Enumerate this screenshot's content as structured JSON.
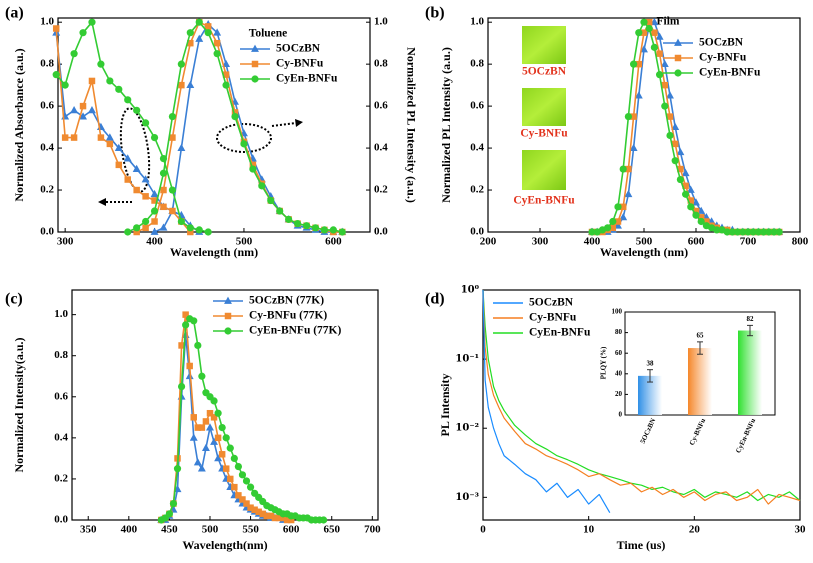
{
  "chart_data": [
    {
      "type": "line",
      "panel_label": "(a)",
      "annotation": "Toluene",
      "xlabel": "Wavelength (nm)",
      "ylabel": "Normalized Absorbance (a.u.)",
      "y2label": "Normalized PL Intensity (a.u.)",
      "xlim": [
        292,
        641
      ],
      "xticks": [
        300,
        400,
        500,
        600
      ],
      "ylim": [
        0,
        1.02
      ],
      "yticks": [
        {
          "value": 0,
          "label": "0.0"
        },
        0.2,
        0.4,
        0.6,
        0.8,
        {
          "value": 1,
          "label": "1.0"
        }
      ],
      "y2lim": [
        0,
        1.02
      ],
      "y2ticks": [
        {
          "value": 0,
          "label": "0.0"
        },
        0.2,
        0.4,
        0.6,
        0.8,
        {
          "value": 1,
          "label": "1.0"
        }
      ],
      "x": [
        290,
        300,
        310,
        320,
        330,
        340,
        350,
        360,
        370,
        380,
        390,
        400,
        410,
        420,
        430,
        440,
        450,
        460,
        470,
        480,
        490,
        500,
        510,
        520,
        530,
        540,
        550,
        560,
        570,
        580,
        590,
        600,
        610
      ],
      "series": [
        {
          "name": "5OCzBN",
          "color": "#3a7fd5",
          "marker": "triangle",
          "values": [
            0.95,
            0.55,
            0.58,
            0.55,
            0.58,
            0.5,
            0.45,
            0.4,
            0.35,
            0.3,
            0.25,
            0.18,
            0.12,
            0.1,
            0.08,
            0.03,
            0.0,
            null,
            null,
            null,
            null,
            null,
            null,
            null,
            null,
            null,
            null,
            null,
            null,
            null,
            null,
            null,
            null
          ],
          "y2_values": [
            null,
            null,
            null,
            null,
            null,
            null,
            null,
            null,
            null,
            null,
            null,
            0.0,
            0.02,
            0.1,
            0.4,
            0.7,
            0.92,
            0.99,
            0.95,
            0.8,
            0.62,
            0.47,
            0.35,
            0.25,
            0.17,
            0.1,
            0.06,
            0.03,
            0.02,
            0.01,
            0.0,
            0.0,
            0.0
          ]
        },
        {
          "name": "Cy-BNFu",
          "color": "#f08a30",
          "marker": "square",
          "values": [
            0.97,
            0.45,
            0.45,
            0.6,
            0.72,
            0.45,
            0.42,
            0.32,
            0.25,
            0.2,
            0.17,
            0.15,
            0.12,
            0.1,
            0.05,
            0.0,
            null,
            null,
            null,
            null,
            null,
            null,
            null,
            null,
            null,
            null,
            null,
            null,
            null,
            null,
            null,
            null,
            null
          ],
          "y2_values": [
            null,
            null,
            null,
            null,
            null,
            null,
            null,
            null,
            null,
            0.0,
            0.02,
            0.05,
            0.2,
            0.45,
            0.7,
            0.9,
            1.0,
            0.98,
            0.9,
            0.75,
            0.57,
            0.43,
            0.32,
            0.23,
            0.15,
            0.1,
            0.06,
            0.04,
            0.03,
            0.02,
            0.01,
            0.0,
            0.0
          ]
        },
        {
          "name": "CyEn-BNFu",
          "color": "#33cc33",
          "marker": "circle",
          "values": [
            0.75,
            0.7,
            0.85,
            0.95,
            1.0,
            0.8,
            0.72,
            0.68,
            0.63,
            0.58,
            0.52,
            0.45,
            0.35,
            0.2,
            0.05,
            0.02,
            0.01,
            0.0,
            null,
            null,
            null,
            null,
            null,
            null,
            null,
            null,
            null,
            null,
            null,
            null,
            null,
            null,
            null
          ],
          "y2_values": [
            null,
            null,
            null,
            null,
            null,
            null,
            null,
            null,
            0.0,
            0.02,
            0.05,
            0.1,
            0.28,
            0.55,
            0.8,
            0.95,
            1.0,
            0.95,
            0.85,
            0.7,
            0.55,
            0.42,
            0.3,
            0.22,
            0.15,
            0.1,
            0.06,
            0.04,
            0.03,
            0.02,
            0.01,
            0.01,
            0.0
          ]
        }
      ]
    },
    {
      "type": "line",
      "panel_label": "(b)",
      "annotation": "Film",
      "image_labels": [
        "5OCzBN",
        "Cy-BNFu",
        "CyEn-BNFu"
      ],
      "xlabel": "Wavelength (nm)",
      "ylabel": "Normalized PL Intensity (a.u.)",
      "xlim": [
        200,
        800
      ],
      "xticks": [
        200,
        300,
        400,
        500,
        600,
        700,
        800
      ],
      "ylim": [
        0,
        1.02
      ],
      "yticks": [
        {
          "value": 0,
          "label": "0.0"
        },
        0.2,
        0.4,
        0.6,
        0.8,
        {
          "value": 1,
          "label": "1.0"
        }
      ],
      "x": [
        400,
        410,
        420,
        430,
        440,
        450,
        460,
        470,
        480,
        490,
        500,
        510,
        520,
        530,
        540,
        550,
        560,
        570,
        580,
        590,
        600,
        610,
        620,
        630,
        640,
        650,
        660,
        670,
        680,
        690,
        700,
        710,
        720,
        730,
        740,
        750,
        760
      ],
      "series": [
        {
          "name": "5OCzBN",
          "color": "#3a7fd5",
          "marker": "triangle",
          "values": [
            0,
            0,
            0,
            0,
            0.01,
            0.03,
            0.07,
            0.18,
            0.4,
            0.65,
            0.87,
            0.98,
            1.0,
            0.93,
            0.8,
            0.65,
            0.5,
            0.38,
            0.28,
            0.2,
            0.14,
            0.1,
            0.07,
            0.05,
            0.03,
            0.02,
            0.01,
            0.01,
            0,
            0,
            0,
            0,
            0,
            0,
            0,
            0,
            0
          ]
        },
        {
          "name": "Cy-BNFu",
          "color": "#f08a30",
          "marker": "square",
          "values": [
            0,
            0,
            0,
            0.01,
            0.02,
            0.05,
            0.12,
            0.3,
            0.55,
            0.8,
            0.95,
            1.0,
            0.95,
            0.85,
            0.7,
            0.55,
            0.42,
            0.3,
            0.22,
            0.15,
            0.1,
            0.07,
            0.05,
            0.03,
            0.02,
            0.01,
            0.01,
            0,
            0,
            0,
            0,
            0,
            0,
            0,
            0,
            0,
            0
          ]
        },
        {
          "name": "CyEn-BNFu",
          "color": "#33cc33",
          "marker": "circle",
          "values": [
            0,
            0,
            0.01,
            0.02,
            0.05,
            0.12,
            0.3,
            0.55,
            0.8,
            0.95,
            1.0,
            0.97,
            0.88,
            0.75,
            0.6,
            0.46,
            0.34,
            0.25,
            0.18,
            0.12,
            0.08,
            0.05,
            0.03,
            0.02,
            0.01,
            0.01,
            0,
            0,
            0,
            0,
            0,
            0,
            0,
            0,
            0,
            0,
            0
          ]
        }
      ]
    },
    {
      "type": "line",
      "panel_label": "(c)",
      "xlabel": "Wavelength(nm)",
      "ylabel": "Normalized Intensity(a.u.)",
      "xlim": [
        330,
        707
      ],
      "xticks": [
        350,
        400,
        450,
        500,
        550,
        600,
        650,
        700
      ],
      "ylim": [
        0,
        1.12
      ],
      "yticks": [
        {
          "value": 0,
          "label": "0.0"
        },
        0.2,
        0.4,
        0.6,
        0.8,
        {
          "value": 1,
          "label": "1.0"
        }
      ],
      "x": [
        440,
        445,
        450,
        455,
        460,
        465,
        470,
        475,
        480,
        485,
        490,
        495,
        500,
        505,
        510,
        515,
        520,
        525,
        530,
        535,
        540,
        545,
        550,
        555,
        560,
        565,
        570,
        575,
        580,
        585,
        590,
        595,
        600,
        605,
        610,
        615,
        620,
        625,
        630,
        635,
        640
      ],
      "series": [
        {
          "name": "5OCzBN (77K)",
          "color": "#3a7fd5",
          "marker": "triangle",
          "values": [
            0,
            0,
            0.02,
            0.05,
            0.15,
            0.6,
            0.9,
            0.7,
            0.4,
            0.28,
            0.25,
            0.35,
            0.45,
            0.38,
            0.3,
            0.25,
            0.2,
            0.16,
            0.12,
            0.1,
            0.08,
            0.06,
            0.05,
            0.04,
            0.03,
            0.02,
            0.02,
            0.01,
            0.01,
            0.01,
            0,
            null,
            null,
            null,
            null,
            null,
            null,
            null,
            null,
            null,
            null
          ]
        },
        {
          "name": "Cy-BNFu (77K)",
          "color": "#f08a30",
          "marker": "square",
          "values": [
            0,
            0.01,
            0.03,
            0.08,
            0.3,
            0.85,
            1.0,
            0.75,
            0.5,
            0.45,
            0.45,
            0.48,
            0.52,
            0.5,
            0.4,
            0.32,
            0.25,
            0.2,
            0.16,
            0.12,
            0.1,
            0.08,
            0.06,
            0.05,
            0.04,
            0.03,
            0.02,
            0.02,
            0.01,
            0.01,
            0.01,
            0,
            0,
            null,
            null,
            null,
            null,
            null,
            null,
            null,
            null
          ]
        },
        {
          "name": "CyEn-BNFu (77K)",
          "color": "#33cc33",
          "marker": "circle",
          "values": [
            0,
            0.01,
            0.03,
            0.08,
            0.25,
            0.65,
            0.95,
            0.98,
            0.97,
            0.85,
            0.7,
            0.62,
            0.6,
            0.58,
            0.52,
            0.45,
            0.4,
            0.35,
            0.3,
            0.26,
            0.22,
            0.19,
            0.16,
            0.13,
            0.11,
            0.09,
            0.07,
            0.06,
            0.05,
            0.04,
            0.03,
            0.03,
            0.02,
            0.02,
            0.01,
            0.01,
            0.01,
            0,
            0,
            0,
            0
          ]
        }
      ]
    },
    {
      "type": "line",
      "panel_label": "(d)",
      "log_y": true,
      "xlabel": "Time (us)",
      "ylabel": "PL Intensity",
      "xlim": [
        0,
        30
      ],
      "xticks": [
        0,
        10,
        20,
        30
      ],
      "ylim": [
        0.00047,
        1
      ],
      "yticks": [
        {
          "value": 0.001,
          "label": "10⁻³"
        },
        {
          "value": 0.01,
          "label": "10⁻²"
        },
        {
          "value": 0.1,
          "label": "10⁻¹"
        },
        {
          "value": 1,
          "label": "10⁰"
        }
      ],
      "x": [
        0,
        0.2,
        0.5,
        1,
        1.5,
        2,
        3,
        4,
        5,
        6,
        7,
        8,
        9,
        10,
        11,
        12,
        13,
        14,
        15,
        16,
        17,
        18,
        19,
        20,
        21,
        22,
        23,
        24,
        25,
        26,
        27,
        28,
        29,
        30
      ],
      "series": [
        {
          "name": "5OCzBN",
          "color": "#1a8cff",
          "marker": "none",
          "values": [
            1.0,
            0.05,
            0.02,
            0.01,
            0.006,
            0.004,
            0.003,
            0.0022,
            0.0018,
            0.0012,
            0.0016,
            0.001,
            0.0013,
            0.0008,
            0.0011,
            0.0006,
            null,
            null,
            null,
            null,
            null,
            null,
            null,
            null,
            null,
            null,
            null,
            null,
            null,
            null,
            null,
            null,
            null,
            null
          ]
        },
        {
          "name": "Cy-BNFu",
          "color": "#f57f20",
          "marker": "none",
          "values": [
            1.0,
            0.15,
            0.06,
            0.03,
            0.02,
            0.014,
            0.009,
            0.006,
            0.005,
            0.004,
            0.0035,
            0.003,
            0.0025,
            0.002,
            0.0022,
            0.0018,
            0.0015,
            0.0016,
            0.0012,
            0.0014,
            0.0011,
            0.0013,
            0.001,
            0.0012,
            0.0009,
            0.0011,
            0.0012,
            0.0009,
            0.001,
            0.0013,
            0.0008,
            0.0011,
            0.001,
            0.0009
          ]
        },
        {
          "name": "CyEn-BNFu",
          "color": "#22dd22",
          "marker": "none",
          "values": [
            1.0,
            0.3,
            0.1,
            0.04,
            0.025,
            0.018,
            0.011,
            0.008,
            0.006,
            0.005,
            0.004,
            0.0035,
            0.003,
            0.0025,
            0.0022,
            0.002,
            0.0018,
            0.0016,
            0.0015,
            0.0013,
            0.0014,
            0.0012,
            0.0011,
            0.0013,
            0.001,
            0.0012,
            0.0011,
            0.001,
            0.0012,
            0.0009,
            0.0011,
            0.001,
            0.0012,
            0.0009
          ]
        }
      ]
    },
    {
      "type": "bar",
      "ylabel": "PLQY (%)",
      "categories": [
        "5OCzBN",
        "Cy-BNFu",
        "CyEn-BNFu"
      ],
      "values": [
        38,
        65,
        82
      ],
      "errors": [
        6,
        6,
        5
      ],
      "colors": [
        "#2f8fe6",
        "#f5872a",
        "#2ee02e"
      ],
      "ylim": [
        0,
        100
      ],
      "yticks": [
        0,
        20,
        40,
        60,
        80,
        100
      ]
    }
  ]
}
